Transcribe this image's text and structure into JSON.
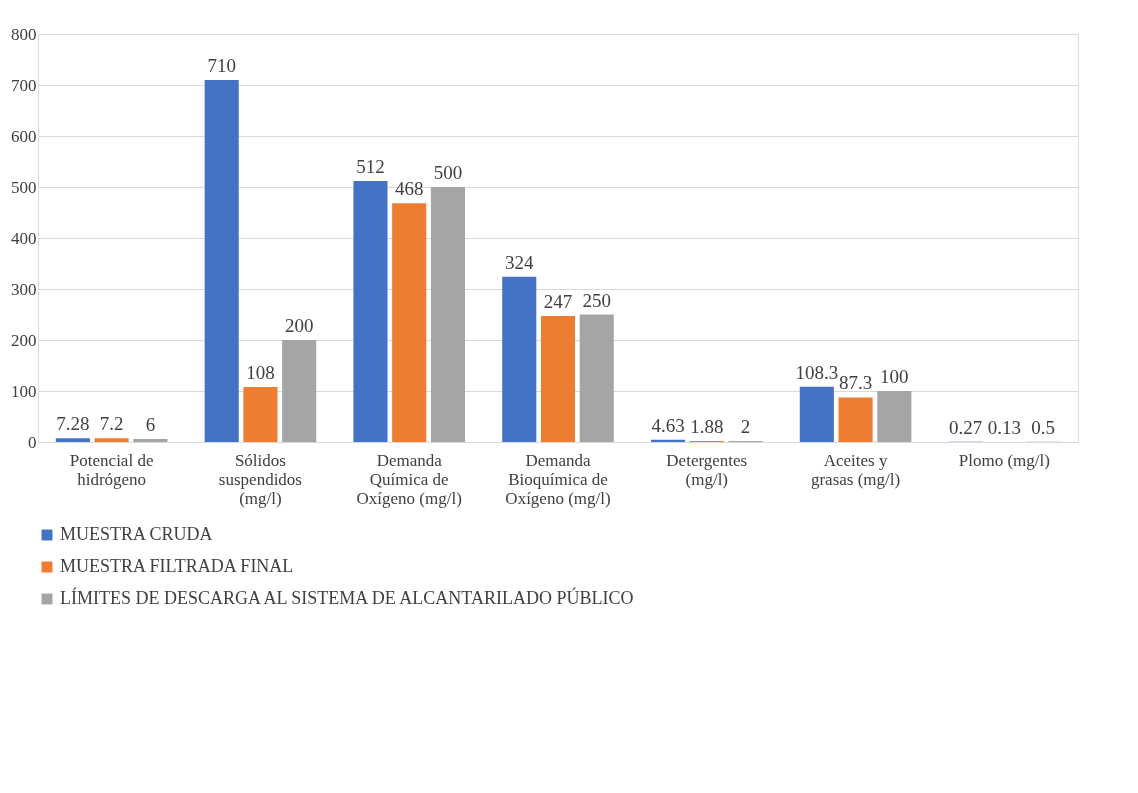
{
  "chart_data": {
    "type": "bar",
    "categories": [
      "Potencial de hidrógeno",
      "Sólidos suspendidos (mg/l)",
      "Demanda Química de Oxígeno (mg/l)",
      "Demanda Bioquímica de Oxígeno (mg/l)",
      "Detergentes (mg/l)",
      "Aceites y grasas  (mg/l)",
      "Plomo  (mg/l)"
    ],
    "series": [
      {
        "name": "MUESTRA CRUDA",
        "color": "#4472c4",
        "values": [
          7.28,
          710,
          512,
          324,
          4.63,
          108.3,
          0.27
        ]
      },
      {
        "name": "MUESTRA FILTRADA FINAL",
        "color": "#ed7d31",
        "values": [
          7.2,
          108,
          468,
          247,
          1.88,
          87.3,
          0.13
        ]
      },
      {
        "name": "LÍMITES DE DESCARGA AL SISTEMA DE ALCANTARILADO PÚBLICO",
        "color": "#a5a5a5",
        "values": [
          6,
          200,
          500,
          250,
          2,
          100,
          0.5
        ]
      }
    ],
    "ylim": [
      0,
      800
    ],
    "yticks": [
      0,
      100,
      200,
      300,
      400,
      500,
      600,
      700,
      800
    ],
    "grid": "y",
    "legend": "bottom",
    "data_labels": true
  }
}
